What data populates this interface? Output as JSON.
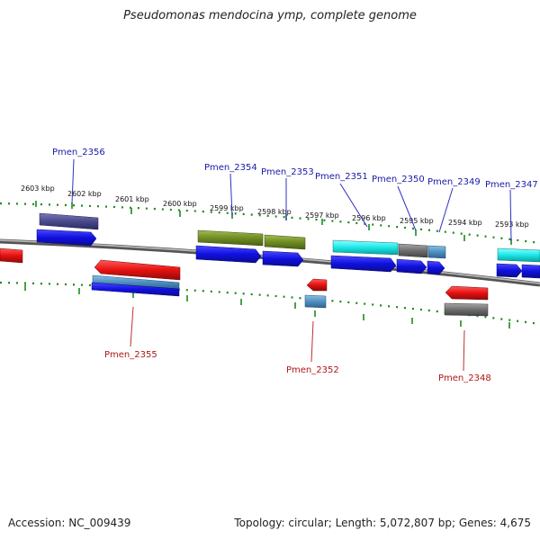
{
  "title": "Pseudomonas mendocina ymp, complete genome",
  "accession_label": "Accession: NC_009439",
  "summary_label": "Topology: circular; Length: 5,072,807 bp; Genes: 4,675",
  "scale_labels": [
    "2603 kbp",
    "2602 kbp",
    "2601 kbp",
    "2600 kbp",
    "2599 kbp",
    "2598 kbp",
    "2597 kbp",
    "2596 kbp",
    "2595 kbp",
    "2594 kbp",
    "2593 kbp"
  ],
  "gene_labels": [
    {
      "id": "pmen-2356",
      "text": "Pmen_2356",
      "strand": "forward"
    },
    {
      "id": "pmen-2354",
      "text": "Pmen_2354",
      "strand": "forward"
    },
    {
      "id": "pmen-2353",
      "text": "Pmen_2353",
      "strand": "forward"
    },
    {
      "id": "pmen-2351",
      "text": "Pmen_2351",
      "strand": "forward"
    },
    {
      "id": "pmen-2350",
      "text": "Pmen_2350",
      "strand": "forward"
    },
    {
      "id": "pmen-2349",
      "text": "Pmen_2349",
      "strand": "forward"
    },
    {
      "id": "pmen-2347",
      "text": "Pmen_2347",
      "strand": "forward"
    },
    {
      "id": "pmen-2355",
      "text": "Pmen_2355",
      "strand": "reverse"
    },
    {
      "id": "pmen-2352",
      "text": "Pmen_2352",
      "strand": "reverse"
    },
    {
      "id": "pmen-2348",
      "text": "Pmen_2348",
      "strand": "reverse"
    }
  ],
  "colors": {
    "forward_cds": "#1a1ae6",
    "reverse_cds": "#e61a1a",
    "backbone": "#7a7a7a",
    "ticks": "#1a8a1a",
    "forward_label": "#1a1aa8",
    "reverse_label": "#b01515",
    "feature_navy": "#4a4a8c",
    "feature_olive": "#6e8c23",
    "feature_cyan": "#1ae6e6",
    "feature_gray": "#6e6e6e",
    "feature_steel": "#4f8fc0"
  }
}
